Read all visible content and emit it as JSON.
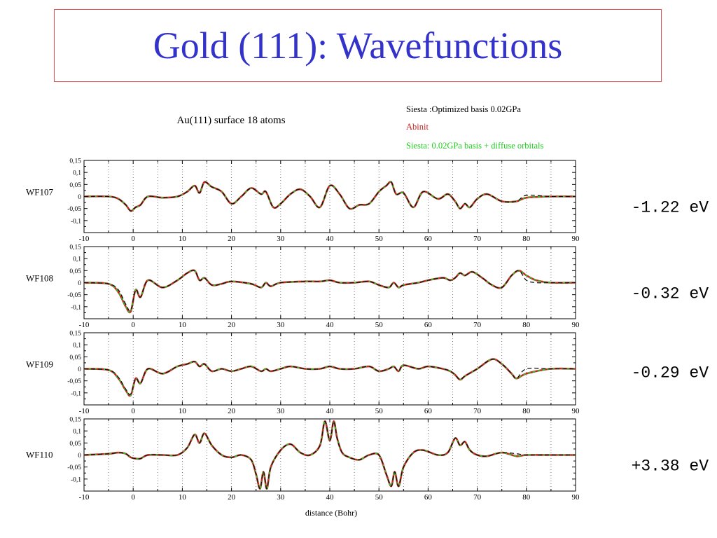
{
  "slide": {
    "title": "Gold (111): Wavefunctions"
  },
  "chart_data": {
    "type": "line",
    "title": "Au(111) surface 18 atoms",
    "xlabel": "distance (Bohr)",
    "xlim": [
      -10,
      90
    ],
    "ylim": [
      -0.15,
      0.15
    ],
    "xticks": [
      "-10",
      "0",
      "10",
      "20",
      "30",
      "40",
      "50",
      "60",
      "70",
      "80",
      "90"
    ],
    "yticks": [
      "0,15",
      "0,1",
      "0,05",
      "0",
      "-0,05",
      "-0,1"
    ],
    "legend": {
      "placement": "top-right",
      "entries": [
        {
          "text": "Siesta :Optimized basis 0.02GPa",
          "color": "#000000",
          "style": "dashed"
        },
        {
          "text": "Abinit",
          "color": "#cc2222",
          "style": "solid"
        },
        {
          "text": "Siesta: 0.02GPa basis + diffuse orbitals",
          "color": "#22cc22",
          "style": "solid"
        }
      ]
    },
    "panels": [
      {
        "ylabel": "WF107",
        "energy": "-1.22 eV",
        "x": [
          -10,
          -5,
          -3,
          -1.5,
          -0.5,
          0.5,
          1.5,
          3,
          6,
          9,
          11,
          12.5,
          13.5,
          14.5,
          16,
          18,
          20,
          22,
          24,
          26,
          27,
          28.5,
          30,
          32,
          34,
          36,
          38,
          40,
          42,
          44,
          46,
          48,
          50,
          51.5,
          52.5,
          53.5,
          55,
          57,
          59,
          62,
          64,
          65.5,
          66.5,
          67.5,
          68.5,
          70,
          72,
          75,
          78,
          80,
          85,
          90
        ],
        "series": [
          {
            "name": "Abinit",
            "values": [
              0,
              0,
              -0.01,
              -0.035,
              -0.06,
              -0.045,
              -0.035,
              0,
              -0.005,
              0,
              0.02,
              0.045,
              0.015,
              0.06,
              0.04,
              0.02,
              -0.03,
              0,
              0.035,
              0.01,
              0.02,
              -0.045,
              -0.03,
              0.01,
              0.03,
              0,
              -0.045,
              0.045,
              0.01,
              -0.05,
              -0.035,
              -0.03,
              0.02,
              0.045,
              0.06,
              0.01,
              0.015,
              -0.045,
              0.02,
              -0.01,
              0.01,
              -0.02,
              -0.05,
              -0.03,
              -0.045,
              -0.01,
              0.01,
              -0.02,
              -0.02,
              -0.005,
              0,
              0
            ]
          },
          {
            "name": "Siesta :Optimized basis 0.02GPa",
            "values": [
              0,
              0,
              -0.01,
              -0.035,
              -0.06,
              -0.045,
              -0.035,
              0,
              -0.005,
              0,
              0.02,
              0.045,
              0.015,
              0.06,
              0.04,
              0.02,
              -0.03,
              0,
              0.035,
              0.01,
              0.02,
              -0.045,
              -0.03,
              0.01,
              0.03,
              0,
              -0.045,
              0.045,
              0.01,
              -0.05,
              -0.035,
              -0.03,
              0.02,
              0.045,
              0.06,
              0.01,
              0.015,
              -0.045,
              0.02,
              -0.01,
              0.01,
              -0.02,
              -0.05,
              -0.03,
              -0.045,
              -0.01,
              0.01,
              -0.02,
              -0.02,
              0.005,
              0,
              0
            ]
          },
          {
            "name": "Siesta: 0.02GPa basis + diffuse orbitals",
            "values": [
              0,
              0,
              -0.01,
              -0.035,
              -0.06,
              -0.045,
              -0.035,
              0,
              -0.005,
              0,
              0.02,
              0.045,
              0.015,
              0.06,
              0.04,
              0.02,
              -0.03,
              0,
              0.035,
              0.01,
              0.02,
              -0.045,
              -0.03,
              0.01,
              0.03,
              0,
              -0.045,
              0.045,
              0.01,
              -0.05,
              -0.035,
              -0.03,
              0.02,
              0.045,
              0.06,
              0.01,
              0.015,
              -0.045,
              0.02,
              -0.01,
              0.01,
              -0.02,
              -0.05,
              -0.03,
              -0.045,
              -0.01,
              0.01,
              -0.02,
              -0.02,
              -0.005,
              0,
              0
            ]
          }
        ]
      },
      {
        "ylabel": "WF108",
        "energy": "-0.32 eV",
        "x": [
          -10,
          -5,
          -3,
          -1.5,
          -0.5,
          0.5,
          1.5,
          3,
          6,
          9,
          11,
          12.5,
          13.5,
          14.5,
          16,
          18,
          20,
          24,
          26,
          27,
          28,
          30,
          35,
          38,
          40,
          42,
          45,
          48,
          50,
          52,
          53,
          54,
          55,
          58,
          60,
          63,
          64.5,
          65.5,
          66.5,
          67.5,
          69,
          71,
          73,
          75,
          77,
          78.5,
          80,
          82,
          85,
          90
        ],
        "series": [
          {
            "name": "Abinit",
            "values": [
              0,
              -0.005,
              -0.04,
              -0.1,
              -0.12,
              -0.03,
              -0.06,
              0.01,
              -0.02,
              0.01,
              0.04,
              0.05,
              0.01,
              0.02,
              -0.01,
              -0.005,
              0.005,
              -0.005,
              -0.02,
              0,
              -0.015,
              0,
              0.005,
              0.005,
              0.01,
              0,
              0,
              0.005,
              -0.01,
              -0.02,
              0,
              -0.02,
              -0.01,
              0,
              0.01,
              0.02,
              0.01,
              0.02,
              0.04,
              0.03,
              0.045,
              0.02,
              -0.01,
              -0.02,
              0.03,
              0.05,
              0.03,
              0.01,
              0,
              0
            ]
          },
          {
            "name": "Siesta :Optimized basis 0.02GPa",
            "values": [
              0,
              -0.005,
              -0.03,
              -0.09,
              -0.115,
              -0.03,
              -0.06,
              0.01,
              -0.02,
              0.01,
              0.04,
              0.05,
              0.01,
              0.02,
              -0.01,
              -0.005,
              0.005,
              -0.005,
              -0.02,
              0,
              -0.015,
              0,
              0.005,
              0.005,
              0.01,
              0,
              0,
              0.005,
              -0.01,
              -0.02,
              0,
              -0.02,
              -0.01,
              0,
              0.01,
              0.02,
              0.01,
              0.02,
              0.04,
              0.03,
              0.045,
              0.02,
              -0.01,
              -0.02,
              0.03,
              0.05,
              0.01,
              0,
              0,
              0
            ]
          },
          {
            "name": "Siesta: 0.02GPa basis + diffuse orbitals",
            "values": [
              0,
              -0.005,
              -0.04,
              -0.1,
              -0.12,
              -0.03,
              -0.06,
              0.01,
              -0.02,
              0.01,
              0.04,
              0.05,
              0.01,
              0.02,
              -0.01,
              -0.005,
              0.005,
              -0.005,
              -0.02,
              0,
              -0.015,
              0,
              0.005,
              0.005,
              0.01,
              0,
              0,
              0.005,
              -0.01,
              -0.02,
              0,
              -0.02,
              -0.01,
              0,
              0.01,
              0.02,
              0.01,
              0.02,
              0.04,
              0.03,
              0.045,
              0.02,
              -0.01,
              -0.02,
              0.03,
              0.05,
              0.03,
              0.01,
              0,
              0
            ]
          }
        ]
      },
      {
        "ylabel": "WF109",
        "energy": "-0.29 eV",
        "x": [
          -10,
          -5,
          -3,
          -1.5,
          -0.5,
          0.5,
          1.5,
          3,
          6,
          9,
          11,
          12.5,
          13.5,
          14.5,
          16,
          18,
          20,
          22,
          24,
          26,
          27,
          28,
          30,
          32,
          35,
          38,
          40,
          42,
          45,
          48,
          50,
          52,
          53,
          54,
          55,
          58,
          60,
          63,
          64.5,
          65.5,
          66.5,
          67.5,
          70,
          73,
          75,
          77,
          78,
          80,
          85,
          90
        ],
        "series": [
          {
            "name": "Abinit",
            "values": [
              0,
              -0.005,
              -0.04,
              -0.09,
              -0.11,
              -0.04,
              -0.06,
              0,
              -0.02,
              0.01,
              0.02,
              0.03,
              0.01,
              0.02,
              -0.01,
              0,
              -0.01,
              0,
              0.01,
              -0.01,
              0,
              -0.01,
              0,
              0.01,
              0,
              0,
              0.01,
              0,
              0,
              0.01,
              -0.01,
              0,
              0.01,
              -0.01,
              0.015,
              0,
              0.01,
              0,
              -0.01,
              -0.025,
              -0.045,
              -0.03,
              0,
              0.04,
              0.02,
              -0.02,
              -0.04,
              -0.02,
              0,
              0
            ]
          },
          {
            "name": "Siesta :Optimized basis 0.02GPa",
            "values": [
              0,
              -0.005,
              -0.035,
              -0.085,
              -0.105,
              -0.04,
              -0.06,
              0,
              -0.02,
              0.01,
              0.02,
              0.03,
              0.01,
              0.02,
              -0.01,
              0,
              -0.01,
              0,
              0.01,
              -0.01,
              0,
              -0.01,
              0,
              0.01,
              0,
              0,
              0.01,
              0,
              0,
              0.01,
              -0.01,
              0,
              0.01,
              -0.01,
              0.015,
              0,
              0.01,
              0,
              -0.01,
              -0.025,
              -0.045,
              -0.03,
              0,
              0.04,
              0.02,
              -0.02,
              -0.04,
              0,
              0,
              0
            ]
          },
          {
            "name": "Siesta: 0.02GPa basis + diffuse orbitals",
            "values": [
              0,
              -0.005,
              -0.04,
              -0.09,
              -0.11,
              -0.04,
              -0.06,
              0,
              -0.02,
              0.01,
              0.02,
              0.03,
              0.01,
              0.02,
              -0.01,
              0,
              -0.01,
              0,
              0.01,
              -0.01,
              0,
              -0.01,
              0,
              0.01,
              0,
              0,
              0.01,
              0,
              0,
              0.01,
              -0.01,
              0,
              0.01,
              -0.01,
              0.015,
              0,
              0.01,
              0,
              -0.01,
              -0.025,
              -0.045,
              -0.03,
              0,
              0.04,
              0.02,
              -0.02,
              -0.04,
              -0.02,
              0,
              0
            ]
          }
        ]
      },
      {
        "ylabel": "WF110",
        "energy": "+3.38 eV",
        "x": [
          -10,
          -5,
          -3,
          -1.5,
          -0.5,
          0.5,
          1.5,
          3,
          6,
          9,
          11,
          12.5,
          13.5,
          14.5,
          16,
          18,
          20,
          22,
          24,
          25,
          25.8,
          26.5,
          27.2,
          28,
          30,
          32,
          34,
          36,
          38,
          39,
          40,
          40.8,
          41.5,
          42.5,
          44,
          46,
          48,
          50,
          51.5,
          52.5,
          53.2,
          54,
          55,
          57,
          59,
          62,
          64,
          65.5,
          66.5,
          67.5,
          68.5,
          70,
          72,
          75,
          78,
          80,
          85,
          90
        ],
        "series": [
          {
            "name": "Abinit",
            "values": [
              0,
              0.005,
              0.01,
              0.005,
              -0.01,
              -0.015,
              -0.015,
              0,
              0,
              0,
              0.03,
              0.085,
              0.05,
              0.09,
              0.04,
              0,
              -0.01,
              0,
              -0.02,
              -0.08,
              -0.14,
              -0.07,
              -0.14,
              -0.05,
              0.02,
              0.045,
              0.01,
              0,
              0.04,
              0.14,
              0.06,
              0.14,
              0.07,
              0.01,
              -0.01,
              -0.02,
              0,
              0,
              -0.08,
              -0.13,
              -0.07,
              -0.13,
              -0.05,
              0.01,
              0.02,
              0,
              0.01,
              0.07,
              0.04,
              0.055,
              0.02,
              0,
              -0.005,
              0.01,
              -0.005,
              0,
              0,
              0
            ]
          },
          {
            "name": "Siesta :Optimized basis 0.02GPa",
            "values": [
              0,
              0.005,
              0.01,
              0.005,
              -0.01,
              -0.015,
              -0.015,
              0,
              0,
              0,
              0.03,
              0.085,
              0.05,
              0.09,
              0.04,
              0,
              -0.01,
              0,
              -0.02,
              -0.08,
              -0.14,
              -0.07,
              -0.14,
              -0.05,
              0.02,
              0.045,
              0.01,
              0,
              0.04,
              0.14,
              0.06,
              0.14,
              0.07,
              0.01,
              -0.01,
              -0.02,
              0,
              0,
              -0.08,
              -0.13,
              -0.07,
              -0.13,
              -0.05,
              0.01,
              0.02,
              0,
              0.01,
              0.07,
              0.04,
              0.055,
              0.02,
              0,
              -0.005,
              0.01,
              0.005,
              0,
              0,
              0
            ]
          },
          {
            "name": "Siesta: 0.02GPa basis + diffuse orbitals",
            "values": [
              0,
              0.005,
              0.01,
              0.005,
              -0.01,
              -0.015,
              -0.015,
              0,
              0,
              0,
              0.03,
              0.085,
              0.05,
              0.09,
              0.04,
              0,
              -0.01,
              0,
              -0.02,
              -0.08,
              -0.14,
              -0.07,
              -0.14,
              -0.05,
              0.02,
              0.045,
              0.01,
              0,
              0.04,
              0.14,
              0.06,
              0.14,
              0.07,
              0.01,
              -0.01,
              -0.02,
              0,
              0,
              -0.08,
              -0.13,
              -0.07,
              -0.13,
              -0.05,
              0.01,
              0.02,
              0,
              0.01,
              0.07,
              0.04,
              0.055,
              0.02,
              0,
              -0.005,
              0.01,
              -0.005,
              0,
              0,
              0
            ]
          }
        ]
      }
    ]
  }
}
